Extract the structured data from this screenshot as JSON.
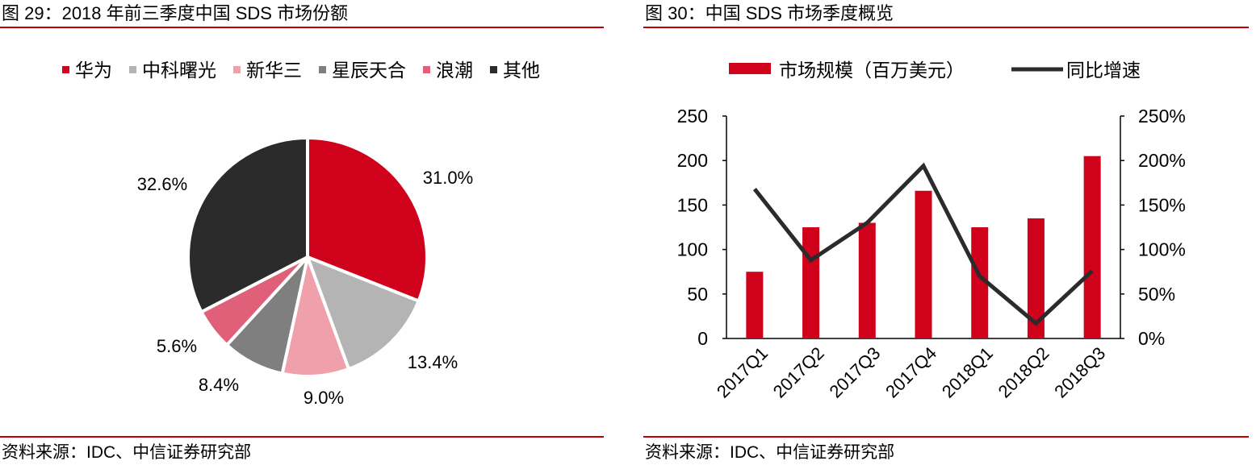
{
  "left_panel": {
    "figure_title": "图 29：2018 年前三季度中国 SDS 市场份额",
    "source": "资料来源：IDC、中信证券研究部"
  },
  "right_panel": {
    "figure_title": "图 30：中国 SDS 市场季度概览",
    "source": "资料来源：IDC、中信证券研究部"
  },
  "chart_data": [
    {
      "type": "pie",
      "title": "2018 年前三季度中国 SDS 市场份额",
      "slices": [
        {
          "label": "华为",
          "value": 31.0,
          "display": "31.0%",
          "color": "#d0021b"
        },
        {
          "label": "中科曙光",
          "value": 13.4,
          "display": "13.4%",
          "color": "#b4b4b4"
        },
        {
          "label": "新华三",
          "value": 9.0,
          "display": "9.0%",
          "color": "#f0a0aa"
        },
        {
          "label": "星辰天合",
          "value": 8.4,
          "display": "8.4%",
          "color": "#7f7f7f"
        },
        {
          "label": "浪潮",
          "value": 5.6,
          "display": "5.6%",
          "color": "#e0607a"
        },
        {
          "label": "其他",
          "value": 32.6,
          "display": "32.6%",
          "color": "#2b2b2b"
        }
      ],
      "legend_position": "top"
    },
    {
      "type": "bar+line",
      "title": "中国 SDS 市场季度概览",
      "categories": [
        "2017Q1",
        "2017Q2",
        "2017Q3",
        "2017Q4",
        "2018Q1",
        "2018Q2",
        "2018Q3"
      ],
      "series": [
        {
          "name": "市场规模（百万美元）",
          "type": "bar",
          "axis": "left",
          "color": "#d0021b",
          "values": [
            75,
            125,
            130,
            166,
            125,
            135,
            205
          ]
        },
        {
          "name": "同比增速",
          "type": "line",
          "axis": "right",
          "color": "#2b2b2b",
          "values": [
            168,
            88,
            130,
            194,
            70,
            17,
            76
          ]
        }
      ],
      "y_left": {
        "min": 0,
        "max": 250,
        "ticks": [
          "0",
          "50",
          "100",
          "150",
          "200",
          "250"
        ]
      },
      "y_right": {
        "min": 0,
        "max": 250,
        "ticks": [
          "0%",
          "50%",
          "100%",
          "150%",
          "200%",
          "250%"
        ]
      },
      "legend_position": "top"
    }
  ]
}
